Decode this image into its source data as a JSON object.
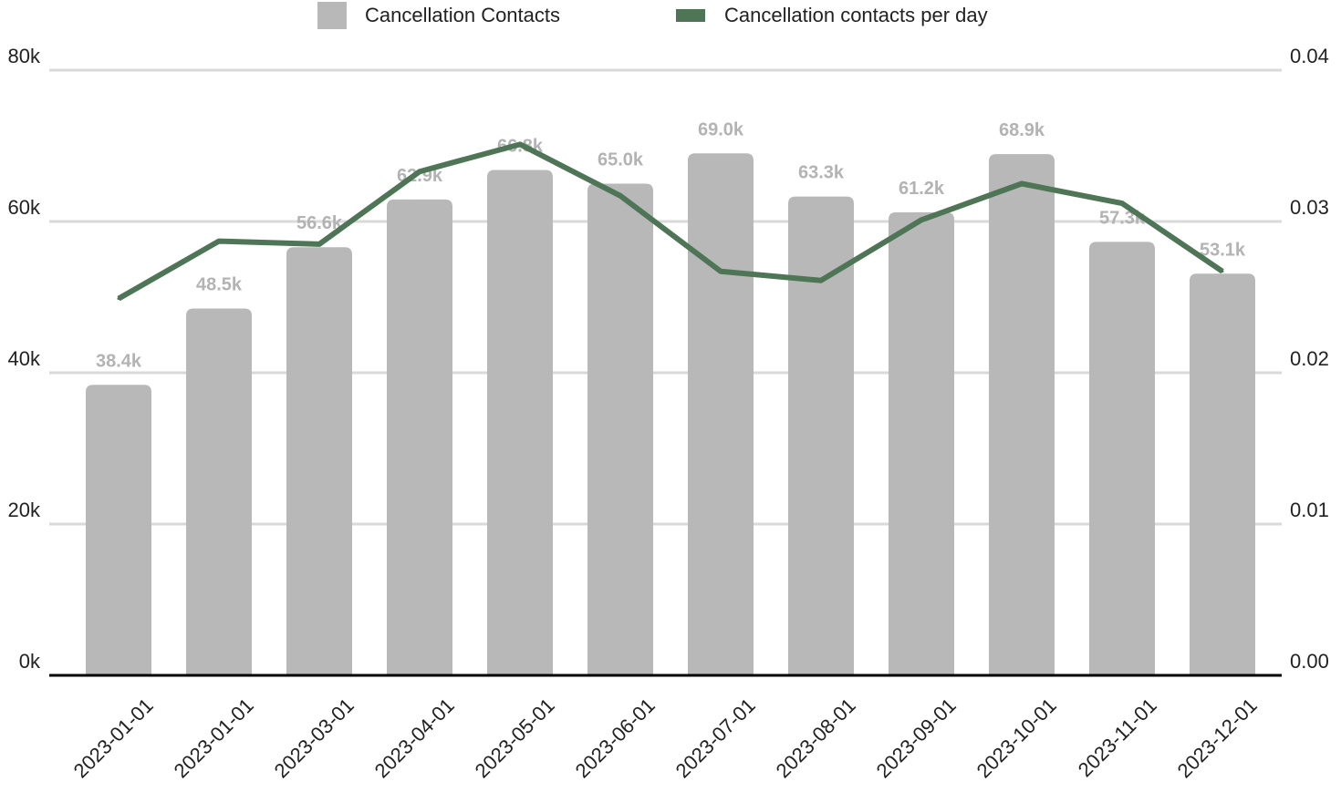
{
  "chart_data": {
    "type": "bar",
    "categories": [
      "2023-01-01",
      "2023-01-01",
      "2023-03-01",
      "2023-04-01",
      "2023-05-01",
      "2023-06-01",
      "2023-07-01",
      "2023-08-01",
      "2023-09-01",
      "2023-10-01",
      "2023-11-01",
      "2023-12-01"
    ],
    "series": [
      {
        "name": "Cancellation Contacts",
        "type": "bar",
        "axis": "left",
        "values": [
          38400,
          48500,
          56600,
          62900,
          66800,
          65000,
          69000,
          63300,
          61200,
          68900,
          57300,
          53100
        ],
        "labels": [
          "38.4k",
          "48.5k",
          "56.6k",
          "62.9k",
          "66.8k",
          "65.0k",
          "69.0k",
          "63.3k",
          "61.2k",
          "68.9k",
          "57.3k",
          "53.1k"
        ],
        "color": "#b8b8b8"
      },
      {
        "name": "Cancellation contacts per day",
        "type": "line",
        "axis": "right",
        "values": [
          0.0249,
          0.0287,
          0.0285,
          0.0333,
          0.0351,
          0.0317,
          0.0267,
          0.0261,
          0.0301,
          0.0325,
          0.0312,
          0.0267
        ],
        "color": "#4e7556"
      }
    ],
    "y_left": {
      "min": 0,
      "max": 80000,
      "ticks": [
        0,
        20000,
        40000,
        60000,
        80000
      ],
      "tick_labels": [
        "0k",
        "20k",
        "40k",
        "60k",
        "80k"
      ]
    },
    "y_right": {
      "min": 0,
      "max": 0.04,
      "ticks": [
        0,
        0.01,
        0.02,
        0.03,
        0.04
      ],
      "tick_labels": [
        "0.00",
        "0.01",
        "0.02",
        "0.03",
        "0.04"
      ]
    },
    "grid": true,
    "legend_position": "top-center",
    "title": "",
    "xlabel": "",
    "ylabel": ""
  }
}
